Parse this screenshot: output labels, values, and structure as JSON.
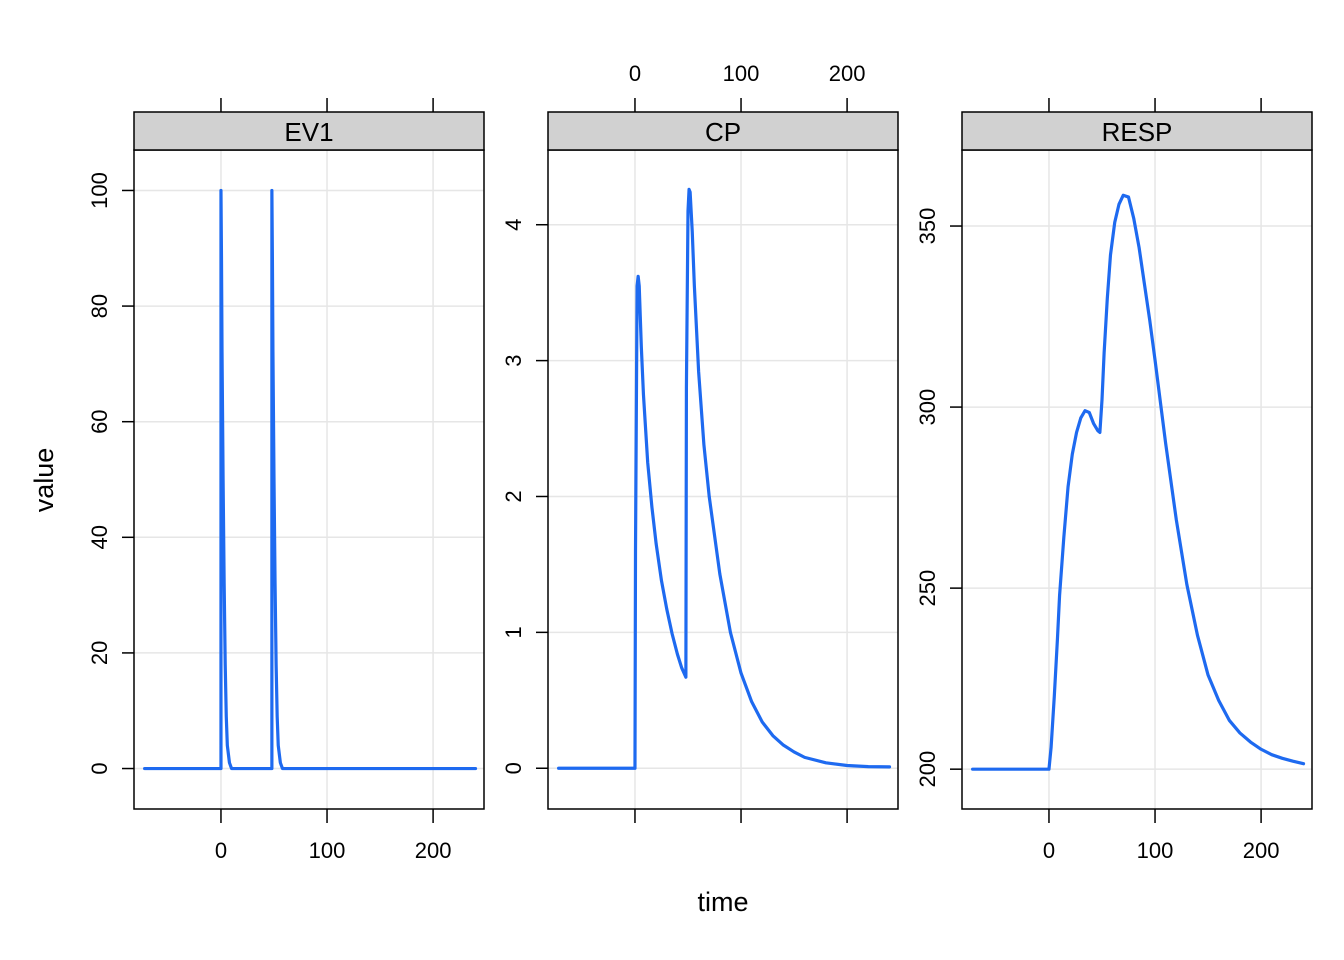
{
  "chart_data": {
    "type": "line",
    "layout": "faceted-lattice",
    "xlabel": "time",
    "ylabel": "value",
    "x_ticks": [
      0,
      100,
      200
    ],
    "xlim": [
      -82,
      248
    ],
    "line_color": "#1E6AF0",
    "panel": {
      "strip_fill": "#D1D1D1",
      "grid": true,
      "grid_color": "#E6E6E6"
    },
    "panels": [
      {
        "name": "EV1",
        "ylim": [
          -7,
          107
        ],
        "y_ticks": [
          0,
          20,
          40,
          60,
          80,
          100
        ],
        "x_axis_side": "bottom",
        "series": [
          {
            "x": [
              -72,
              0,
              0,
              0.5,
              1,
              2,
              3,
              4,
              5,
              6,
              8,
              10,
              20,
              30,
              40,
              48,
              48,
              48.5,
              49,
              50,
              51,
              52,
              53,
              54,
              56,
              58,
              70,
              100,
              150,
              200,
              240
            ],
            "y": [
              0,
              0,
              100,
              88,
              72,
              50,
              32,
              18,
              9,
              4,
              1,
              0,
              0,
              0,
              0,
              0,
              100,
              88,
              72,
              50,
              32,
              18,
              9,
              4,
              1,
              0,
              0,
              0,
              0,
              0,
              0
            ]
          }
        ]
      },
      {
        "name": "CP",
        "ylim": [
          -0.3,
          4.55
        ],
        "y_ticks": [
          0,
          1,
          2,
          3,
          4
        ],
        "x_axis_side": "top",
        "series": [
          {
            "x": [
              -72,
              0,
              0.5,
              2,
              3,
              4,
              6,
              8,
              12,
              16,
              20,
              25,
              30,
              35,
              40,
              44,
              48,
              48.5,
              50,
              51,
              52,
              54,
              56,
              60,
              65,
              70,
              80,
              90,
              100,
              110,
              120,
              130,
              140,
              150,
              160,
              180,
              200,
              220,
              240
            ],
            "y": [
              0,
              0,
              1.6,
              3.55,
              3.62,
              3.55,
              3.1,
              2.75,
              2.25,
              1.92,
              1.65,
              1.38,
              1.17,
              0.99,
              0.84,
              0.74,
              0.67,
              2.8,
              4.1,
              4.26,
              4.24,
              3.95,
              3.55,
              2.92,
              2.38,
              2.0,
              1.43,
              1.0,
              0.7,
              0.49,
              0.34,
              0.24,
              0.17,
              0.12,
              0.08,
              0.04,
              0.02,
              0.012,
              0.01
            ]
          }
        ]
      },
      {
        "name": "RESP",
        "ylim": [
          189,
          371
        ],
        "y_ticks": [
          200,
          250,
          300,
          350
        ],
        "x_axis_side": "bottom",
        "series": [
          {
            "x": [
              -72,
              0,
              2,
              5,
              8,
              10,
              14,
              18,
              22,
              26,
              30,
              34,
              38,
              42,
              46,
              48,
              50,
              52,
              55,
              58,
              62,
              66,
              70,
              75,
              80,
              85,
              90,
              95,
              100,
              110,
              120,
              130,
              140,
              150,
              160,
              170,
              180,
              190,
              200,
              210,
              220,
              230,
              240
            ],
            "y": [
              200,
              200,
              206,
              220,
              236,
              248,
              264,
              278,
              287,
              293,
              297,
              299,
              298.5,
              295.5,
              293.5,
              293,
              302,
              315,
              330,
              342,
              351,
              356,
              358.5,
              358,
              352,
              344,
              334,
              324,
              313,
              290,
              269,
              251,
              237,
              226,
              219,
              213.5,
              210,
              207.5,
              205.5,
              204,
              203,
              202.2,
              201.5
            ]
          }
        ]
      }
    ]
  }
}
